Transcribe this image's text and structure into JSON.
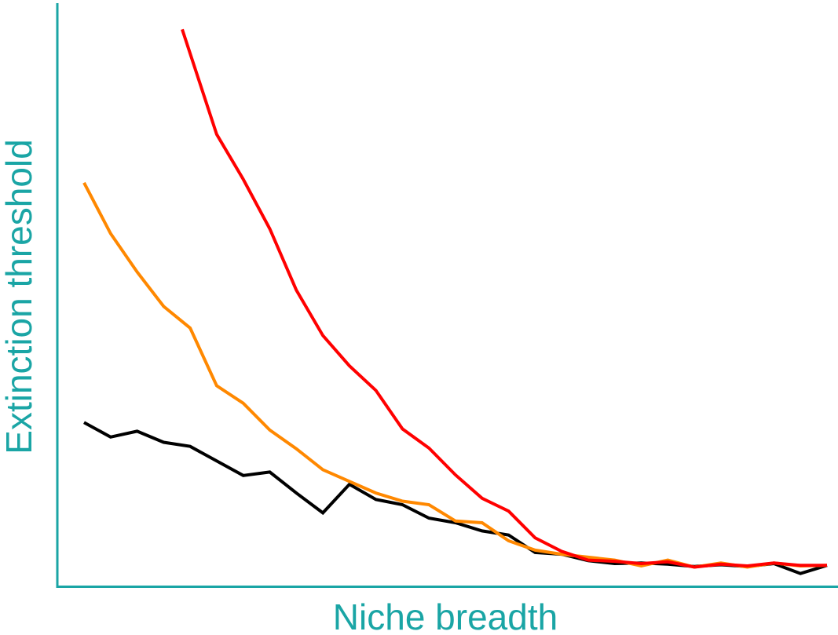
{
  "chart_data": {
    "type": "line",
    "title": "",
    "xlabel": "Niche breadth",
    "ylabel": "Extinction threshold",
    "grid": false,
    "legend": "none",
    "ticks": "none",
    "xlim": [
      0,
      29
    ],
    "ylim": [
      0,
      1
    ],
    "axis_color": "#1aa5a5",
    "series": [
      {
        "color": "#000000",
        "x": [
          1,
          2,
          3,
          4,
          5,
          6,
          7,
          8,
          9,
          10,
          11,
          12,
          13,
          14,
          15,
          16,
          17,
          18,
          19,
          20,
          21,
          22,
          23,
          24,
          25,
          26,
          27,
          28,
          29
        ],
        "y": [
          0.281,
          0.256,
          0.266,
          0.247,
          0.24,
          0.215,
          0.19,
          0.196,
          0.16,
          0.126,
          0.175,
          0.149,
          0.14,
          0.117,
          0.109,
          0.095,
          0.088,
          0.058,
          0.055,
          0.044,
          0.039,
          0.04,
          0.038,
          0.034,
          0.037,
          0.034,
          0.039,
          0.022,
          0.036
        ]
      },
      {
        "color": "#ff8800",
        "x": [
          1,
          2,
          3,
          4,
          5,
          6,
          7,
          8,
          9,
          10,
          11,
          12,
          13,
          14,
          15,
          16,
          17,
          18,
          19,
          20,
          21,
          22,
          23,
          24,
          25,
          26,
          27,
          28,
          29
        ],
        "y": [
          0.692,
          0.605,
          0.539,
          0.48,
          0.443,
          0.344,
          0.314,
          0.268,
          0.236,
          0.2,
          0.18,
          0.16,
          0.146,
          0.14,
          0.112,
          0.109,
          0.078,
          0.062,
          0.055,
          0.05,
          0.045,
          0.035,
          0.045,
          0.033,
          0.04,
          0.033,
          0.04,
          0.035,
          0.036
        ]
      },
      {
        "color": "#ff0000",
        "x": [
          4.7,
          6,
          7,
          8,
          9,
          10,
          11,
          12,
          13,
          14,
          15,
          16,
          17,
          18,
          19,
          20,
          21,
          22,
          23,
          24,
          25,
          26,
          27,
          28,
          29
        ],
        "y": [
          0.955,
          0.775,
          0.698,
          0.613,
          0.508,
          0.43,
          0.378,
          0.336,
          0.27,
          0.237,
          0.191,
          0.151,
          0.129,
          0.083,
          0.06,
          0.045,
          0.043,
          0.039,
          0.042,
          0.033,
          0.038,
          0.035,
          0.04,
          0.036,
          0.036
        ]
      }
    ]
  }
}
